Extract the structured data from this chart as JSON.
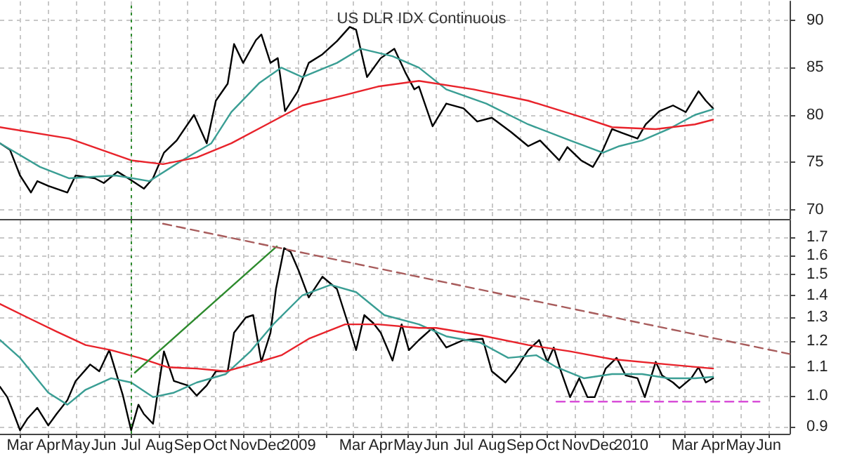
{
  "chart_data": [
    {
      "type": "line",
      "title": "US DLR IDX Continuous",
      "marker": "none",
      "grid": true,
      "tick_labels": "y",
      "xlim": [
        "2008-02-08",
        "2010-06-24"
      ],
      "xticks": [
        {
          "value": "2008-03-01",
          "label": null
        },
        {
          "value": "2008-04-01",
          "label": null
        },
        {
          "value": "2008-05-01",
          "label": null
        },
        {
          "value": "2008-06-01",
          "label": null
        },
        {
          "value": "2008-07-01",
          "label": null
        },
        {
          "value": "2008-08-01",
          "label": null
        },
        {
          "value": "2008-09-01",
          "label": null
        },
        {
          "value": "2008-10-01",
          "label": null
        },
        {
          "value": "2008-11-01",
          "label": null
        },
        {
          "value": "2008-12-01",
          "label": null
        },
        {
          "value": "2009-01-01",
          "label": null
        },
        {
          "value": "2009-02-01",
          "label": null
        },
        {
          "value": "2009-03-01",
          "label": null
        },
        {
          "value": "2009-04-01",
          "label": null
        },
        {
          "value": "2009-05-01",
          "label": null
        },
        {
          "value": "2009-06-01",
          "label": null
        },
        {
          "value": "2009-07-01",
          "label": null
        },
        {
          "value": "2009-08-01",
          "label": null
        },
        {
          "value": "2009-09-01",
          "label": null
        },
        {
          "value": "2009-10-01",
          "label": null
        },
        {
          "value": "2009-11-01",
          "label": null
        },
        {
          "value": "2009-12-01",
          "label": null
        },
        {
          "value": "2010-01-01",
          "label": null
        },
        {
          "value": "2010-02-01",
          "label": null
        },
        {
          "value": "2010-03-01",
          "label": null
        },
        {
          "value": "2010-04-01",
          "label": null
        },
        {
          "value": "2010-05-01",
          "label": null
        },
        {
          "value": "2010-06-01",
          "label": null
        }
      ],
      "ylim": [
        69,
        92
      ],
      "yticks": [
        70,
        75,
        80,
        85,
        90
      ],
      "ref_lines": [
        {
          "axis": "x",
          "value": "2008-07-01",
          "color": "#2e8b2e",
          "line_style": "dotted"
        }
      ],
      "series": [
        {
          "color": "#000000",
          "x": [
            "2008-02-08",
            "2008-02-19",
            "2008-03-01",
            "2008-03-13",
            "2008-03-20",
            "2008-04-01",
            "2008-04-22",
            "2008-05-01",
            "2008-05-22",
            "2008-06-01",
            "2008-06-16",
            "2008-07-01",
            "2008-07-15",
            "2008-07-25",
            "2008-08-06",
            "2008-08-20",
            "2008-09-08",
            "2008-09-22",
            "2008-10-02",
            "2008-10-15",
            "2008-10-22",
            "2008-11-01",
            "2008-11-15",
            "2008-11-21",
            "2008-12-01",
            "2008-12-09",
            "2008-12-17",
            "2008-12-31",
            "2009-01-12",
            "2009-01-27",
            "2009-02-12",
            "2009-02-26",
            "2009-03-05",
            "2009-03-17",
            "2009-04-01",
            "2009-04-16",
            "2009-04-28",
            "2009-05-08",
            "2009-05-13",
            "2009-05-28",
            "2009-06-12",
            "2009-07-01",
            "2009-07-16",
            "2009-08-01",
            "2009-08-22",
            "2009-09-10",
            "2009-09-23",
            "2009-10-14",
            "2009-10-23",
            "2009-11-07",
            "2009-11-20",
            "2009-12-01",
            "2009-12-11",
            "2009-12-22",
            "2010-01-08",
            "2010-01-17",
            "2010-02-01",
            "2010-02-16",
            "2010-03-02",
            "2010-03-16",
            "2010-03-24",
            "2010-04-01"
          ],
          "values": [
            77.0,
            76.3,
            73.6,
            71.8,
            73.0,
            72.5,
            71.8,
            73.6,
            73.3,
            72.8,
            74.0,
            73.1,
            72.2,
            73.3,
            76.0,
            77.3,
            80.0,
            77.0,
            81.5,
            83.3,
            87.5,
            85.5,
            87.9,
            88.5,
            85.5,
            86.0,
            80.4,
            82.5,
            85.5,
            86.4,
            87.8,
            89.3,
            89.0,
            84.0,
            86.0,
            87.0,
            84.5,
            82.7,
            83.0,
            78.8,
            81.2,
            80.7,
            79.3,
            79.7,
            78.2,
            76.7,
            77.3,
            75.2,
            76.6,
            75.2,
            74.5,
            76.3,
            78.5,
            78.1,
            77.5,
            79.0,
            80.4,
            81.0,
            80.3,
            82.5,
            81.5,
            80.7
          ]
        },
        {
          "color": "#3a9e94",
          "x": [
            "2008-02-08",
            "2008-03-23",
            "2008-04-24",
            "2008-06-14",
            "2008-07-21",
            "2008-08-26",
            "2008-09-27",
            "2008-10-19",
            "2008-11-19",
            "2008-12-13",
            "2009-01-05",
            "2009-02-12",
            "2009-03-10",
            "2009-04-14",
            "2009-05-13",
            "2009-06-12",
            "2009-07-26",
            "2009-09-10",
            "2009-10-26",
            "2009-12-01",
            "2009-12-19",
            "2010-01-13",
            "2010-02-11",
            "2010-03-12",
            "2010-04-01"
          ],
          "values": [
            77.0,
            74.5,
            73.3,
            73.6,
            73.0,
            75.2,
            77.0,
            80.3,
            83.4,
            85.0,
            84.0,
            85.5,
            87.0,
            86.2,
            85.0,
            82.7,
            81.2,
            79.0,
            77.3,
            76.0,
            76.7,
            77.3,
            78.5,
            80.0,
            80.6
          ]
        },
        {
          "color": "#e8232b",
          "x": [
            "2008-02-08",
            "2008-04-24",
            "2008-07-01",
            "2008-08-05",
            "2008-09-11",
            "2008-10-19",
            "2008-11-27",
            "2009-01-05",
            "2009-02-21",
            "2009-03-29",
            "2009-05-13",
            "2009-07-12",
            "2009-09-10",
            "2009-11-10",
            "2009-12-11",
            "2010-01-28",
            "2010-03-12",
            "2010-04-01"
          ],
          "values": [
            78.7,
            77.5,
            75.2,
            74.8,
            75.5,
            77.0,
            79.0,
            81.0,
            82.1,
            83.0,
            83.6,
            82.7,
            81.5,
            79.7,
            78.7,
            78.5,
            79.0,
            79.5
          ]
        }
      ]
    },
    {
      "type": "line",
      "marker": "none",
      "grid": true,
      "log": "y",
      "xlim": [
        "2008-02-08",
        "2010-06-24"
      ],
      "xticks": [
        {
          "value": "2008-03-01",
          "label": "Mar"
        },
        {
          "value": "2008-04-01",
          "label": "Apr"
        },
        {
          "value": "2008-05-01",
          "label": "May"
        },
        {
          "value": "2008-06-01",
          "label": "Jun"
        },
        {
          "value": "2008-07-01",
          "label": "Jul"
        },
        {
          "value": "2008-08-01",
          "label": "Aug"
        },
        {
          "value": "2008-09-01",
          "label": "Sep"
        },
        {
          "value": "2008-10-01",
          "label": "Oct"
        },
        {
          "value": "2008-11-01",
          "label": "Nov"
        },
        {
          "value": "2008-12-01",
          "label": "Dec"
        },
        {
          "value": "2009-01-01",
          "label": "2009"
        },
        {
          "value": "2009-02-01",
          "label": null
        },
        {
          "value": "2009-03-01",
          "label": "Mar"
        },
        {
          "value": "2009-04-01",
          "label": "Apr"
        },
        {
          "value": "2009-05-01",
          "label": "May"
        },
        {
          "value": "2009-06-01",
          "label": "Jun"
        },
        {
          "value": "2009-07-01",
          "label": "Jul"
        },
        {
          "value": "2009-08-01",
          "label": "Aug"
        },
        {
          "value": "2009-09-01",
          "label": "Sep"
        },
        {
          "value": "2009-10-01",
          "label": "Oct"
        },
        {
          "value": "2009-11-01",
          "label": "Nov"
        },
        {
          "value": "2009-12-01",
          "label": "Dec"
        },
        {
          "value": "2010-01-01",
          "label": "2010"
        },
        {
          "value": "2010-02-01",
          "label": null
        },
        {
          "value": "2010-03-01",
          "label": "Mar"
        },
        {
          "value": "2010-04-01",
          "label": "Apr"
        },
        {
          "value": "2010-05-01",
          "label": "May"
        },
        {
          "value": "2010-06-01",
          "label": "Jun"
        }
      ],
      "ylim": [
        0.88,
        1.8
      ],
      "yticks": [
        {
          "value": 0.9,
          "label": "0.9"
        },
        {
          "value": 1,
          "label": "1.0"
        },
        {
          "value": 1.1,
          "label": "1.1"
        },
        {
          "value": 1.2,
          "label": "1.2"
        },
        {
          "value": 1.3,
          "label": "1.3"
        },
        {
          "value": 1.4,
          "label": "1.4"
        },
        {
          "value": 1.5,
          "label": "1.5"
        },
        {
          "value": 1.6,
          "label": "1.6"
        },
        {
          "value": 1.7,
          "label": "1.7"
        }
      ],
      "ref_lines": [
        {
          "axis": "x",
          "value": "2008-07-01",
          "color": "#2e8b2e",
          "line_style": "dotted"
        }
      ],
      "series": [
        {
          "color": "#000000",
          "x": [
            "2008-02-08",
            "2008-02-16",
            "2008-02-22",
            "2008-03-01",
            "2008-03-09",
            "2008-03-20",
            "2008-04-01",
            "2008-04-10",
            "2008-04-22",
            "2008-05-01",
            "2008-05-17",
            "2008-05-27",
            "2008-06-07",
            "2008-06-14",
            "2008-06-22",
            "2008-07-01",
            "2008-07-09",
            "2008-07-15",
            "2008-07-25",
            "2008-08-06",
            "2008-08-17",
            "2008-09-01",
            "2008-09-11",
            "2008-09-22",
            "2008-10-02",
            "2008-10-15",
            "2008-10-22",
            "2008-11-04",
            "2008-11-12",
            "2008-11-21",
            "2008-12-01",
            "2008-12-07",
            "2008-12-16",
            "2008-12-23",
            "2009-01-01",
            "2009-01-12",
            "2009-01-27",
            "2009-02-12",
            "2009-02-24",
            "2009-03-05",
            "2009-03-14",
            "2009-03-24",
            "2009-04-01",
            "2009-04-14",
            "2009-04-24",
            "2009-05-02",
            "2009-05-13",
            "2009-05-28",
            "2009-06-12",
            "2009-07-01",
            "2009-07-22",
            "2009-08-01",
            "2009-08-16",
            "2009-08-26",
            "2009-09-10",
            "2009-09-22",
            "2009-10-01",
            "2009-10-08",
            "2009-10-16",
            "2009-10-26",
            "2009-11-05",
            "2009-11-14",
            "2009-11-22",
            "2009-12-04",
            "2009-12-16",
            "2009-12-26",
            "2010-01-08",
            "2010-01-16",
            "2010-01-28",
            "2010-02-04",
            "2010-02-16",
            "2010-02-23",
            "2010-03-08",
            "2010-03-16",
            "2010-03-24",
            "2010-04-01"
          ],
          "values": [
            1.03,
            0.995,
            0.95,
            0.89,
            0.925,
            0.96,
            0.905,
            0.94,
            0.985,
            1.05,
            1.11,
            1.085,
            1.165,
            1.085,
            1.0,
            0.89,
            0.97,
            0.94,
            0.91,
            1.16,
            1.05,
            1.035,
            1.0,
            1.035,
            1.085,
            1.085,
            1.235,
            1.3,
            1.31,
            1.12,
            1.235,
            1.43,
            1.64,
            1.62,
            1.52,
            1.39,
            1.49,
            1.43,
            1.275,
            1.165,
            1.31,
            1.275,
            1.235,
            1.125,
            1.27,
            1.165,
            1.205,
            1.255,
            1.175,
            1.205,
            1.21,
            1.085,
            1.045,
            1.085,
            1.165,
            1.205,
            1.12,
            1.175,
            1.085,
            0.995,
            1.06,
            0.995,
            0.995,
            1.095,
            1.135,
            1.07,
            1.06,
            0.995,
            1.12,
            1.07,
            1.045,
            1.025,
            1.06,
            1.1,
            1.045,
            1.06
          ]
        },
        {
          "color": "#3a9e94",
          "x": [
            "2008-02-08",
            "2008-03-01",
            "2008-04-01",
            "2008-04-22",
            "2008-05-12",
            "2008-06-09",
            "2008-07-01",
            "2008-07-25",
            "2008-08-17",
            "2008-09-11",
            "2008-10-13",
            "2008-11-09",
            "2008-12-04",
            "2009-01-05",
            "2009-02-05",
            "2009-03-05",
            "2009-04-05",
            "2009-05-13",
            "2009-06-12",
            "2009-07-19",
            "2009-08-19",
            "2009-09-19",
            "2009-10-11",
            "2009-11-10",
            "2009-12-11",
            "2010-01-13",
            "2010-02-11",
            "2010-03-12",
            "2010-04-01"
          ],
          "values": [
            1.205,
            1.135,
            1.01,
            0.97,
            1.02,
            1.06,
            1.045,
            0.995,
            1.01,
            1.045,
            1.075,
            1.16,
            1.27,
            1.4,
            1.45,
            1.415,
            1.31,
            1.27,
            1.22,
            1.195,
            1.135,
            1.145,
            1.1,
            1.06,
            1.075,
            1.075,
            1.06,
            1.06,
            1.065
          ]
        },
        {
          "color": "#e8232b",
          "x": [
            "2008-02-08",
            "2008-03-09",
            "2008-04-10",
            "2008-05-12",
            "2008-06-09",
            "2008-07-10",
            "2008-08-10",
            "2008-09-11",
            "2008-10-13",
            "2008-11-09",
            "2008-12-13",
            "2009-01-12",
            "2009-02-21",
            "2009-03-29",
            "2009-05-13",
            "2009-06-01",
            "2009-07-19",
            "2009-09-10",
            "2009-10-26",
            "2009-12-11",
            "2010-02-11",
            "2010-04-01"
          ],
          "values": [
            1.36,
            1.3,
            1.24,
            1.185,
            1.165,
            1.135,
            1.1,
            1.095,
            1.085,
            1.11,
            1.145,
            1.21,
            1.27,
            1.27,
            1.255,
            1.255,
            1.225,
            1.185,
            1.16,
            1.13,
            1.11,
            1.095
          ]
        },
        {
          "color": "#2e8b2e",
          "x": [
            "2008-07-05",
            "2008-12-08"
          ],
          "values": [
            1.08,
            1.65
          ]
        },
        {
          "color": "#a85c5c",
          "line_style": "dashed",
          "x": [
            "2008-08-05",
            "2010-06-24"
          ],
          "values": [
            1.78,
            1.15
          ]
        },
        {
          "color": "#d84fd8",
          "line_style": "dashed",
          "x": [
            "2009-10-11",
            "2010-05-22"
          ],
          "values": [
            0.98,
            0.98
          ]
        }
      ]
    }
  ]
}
